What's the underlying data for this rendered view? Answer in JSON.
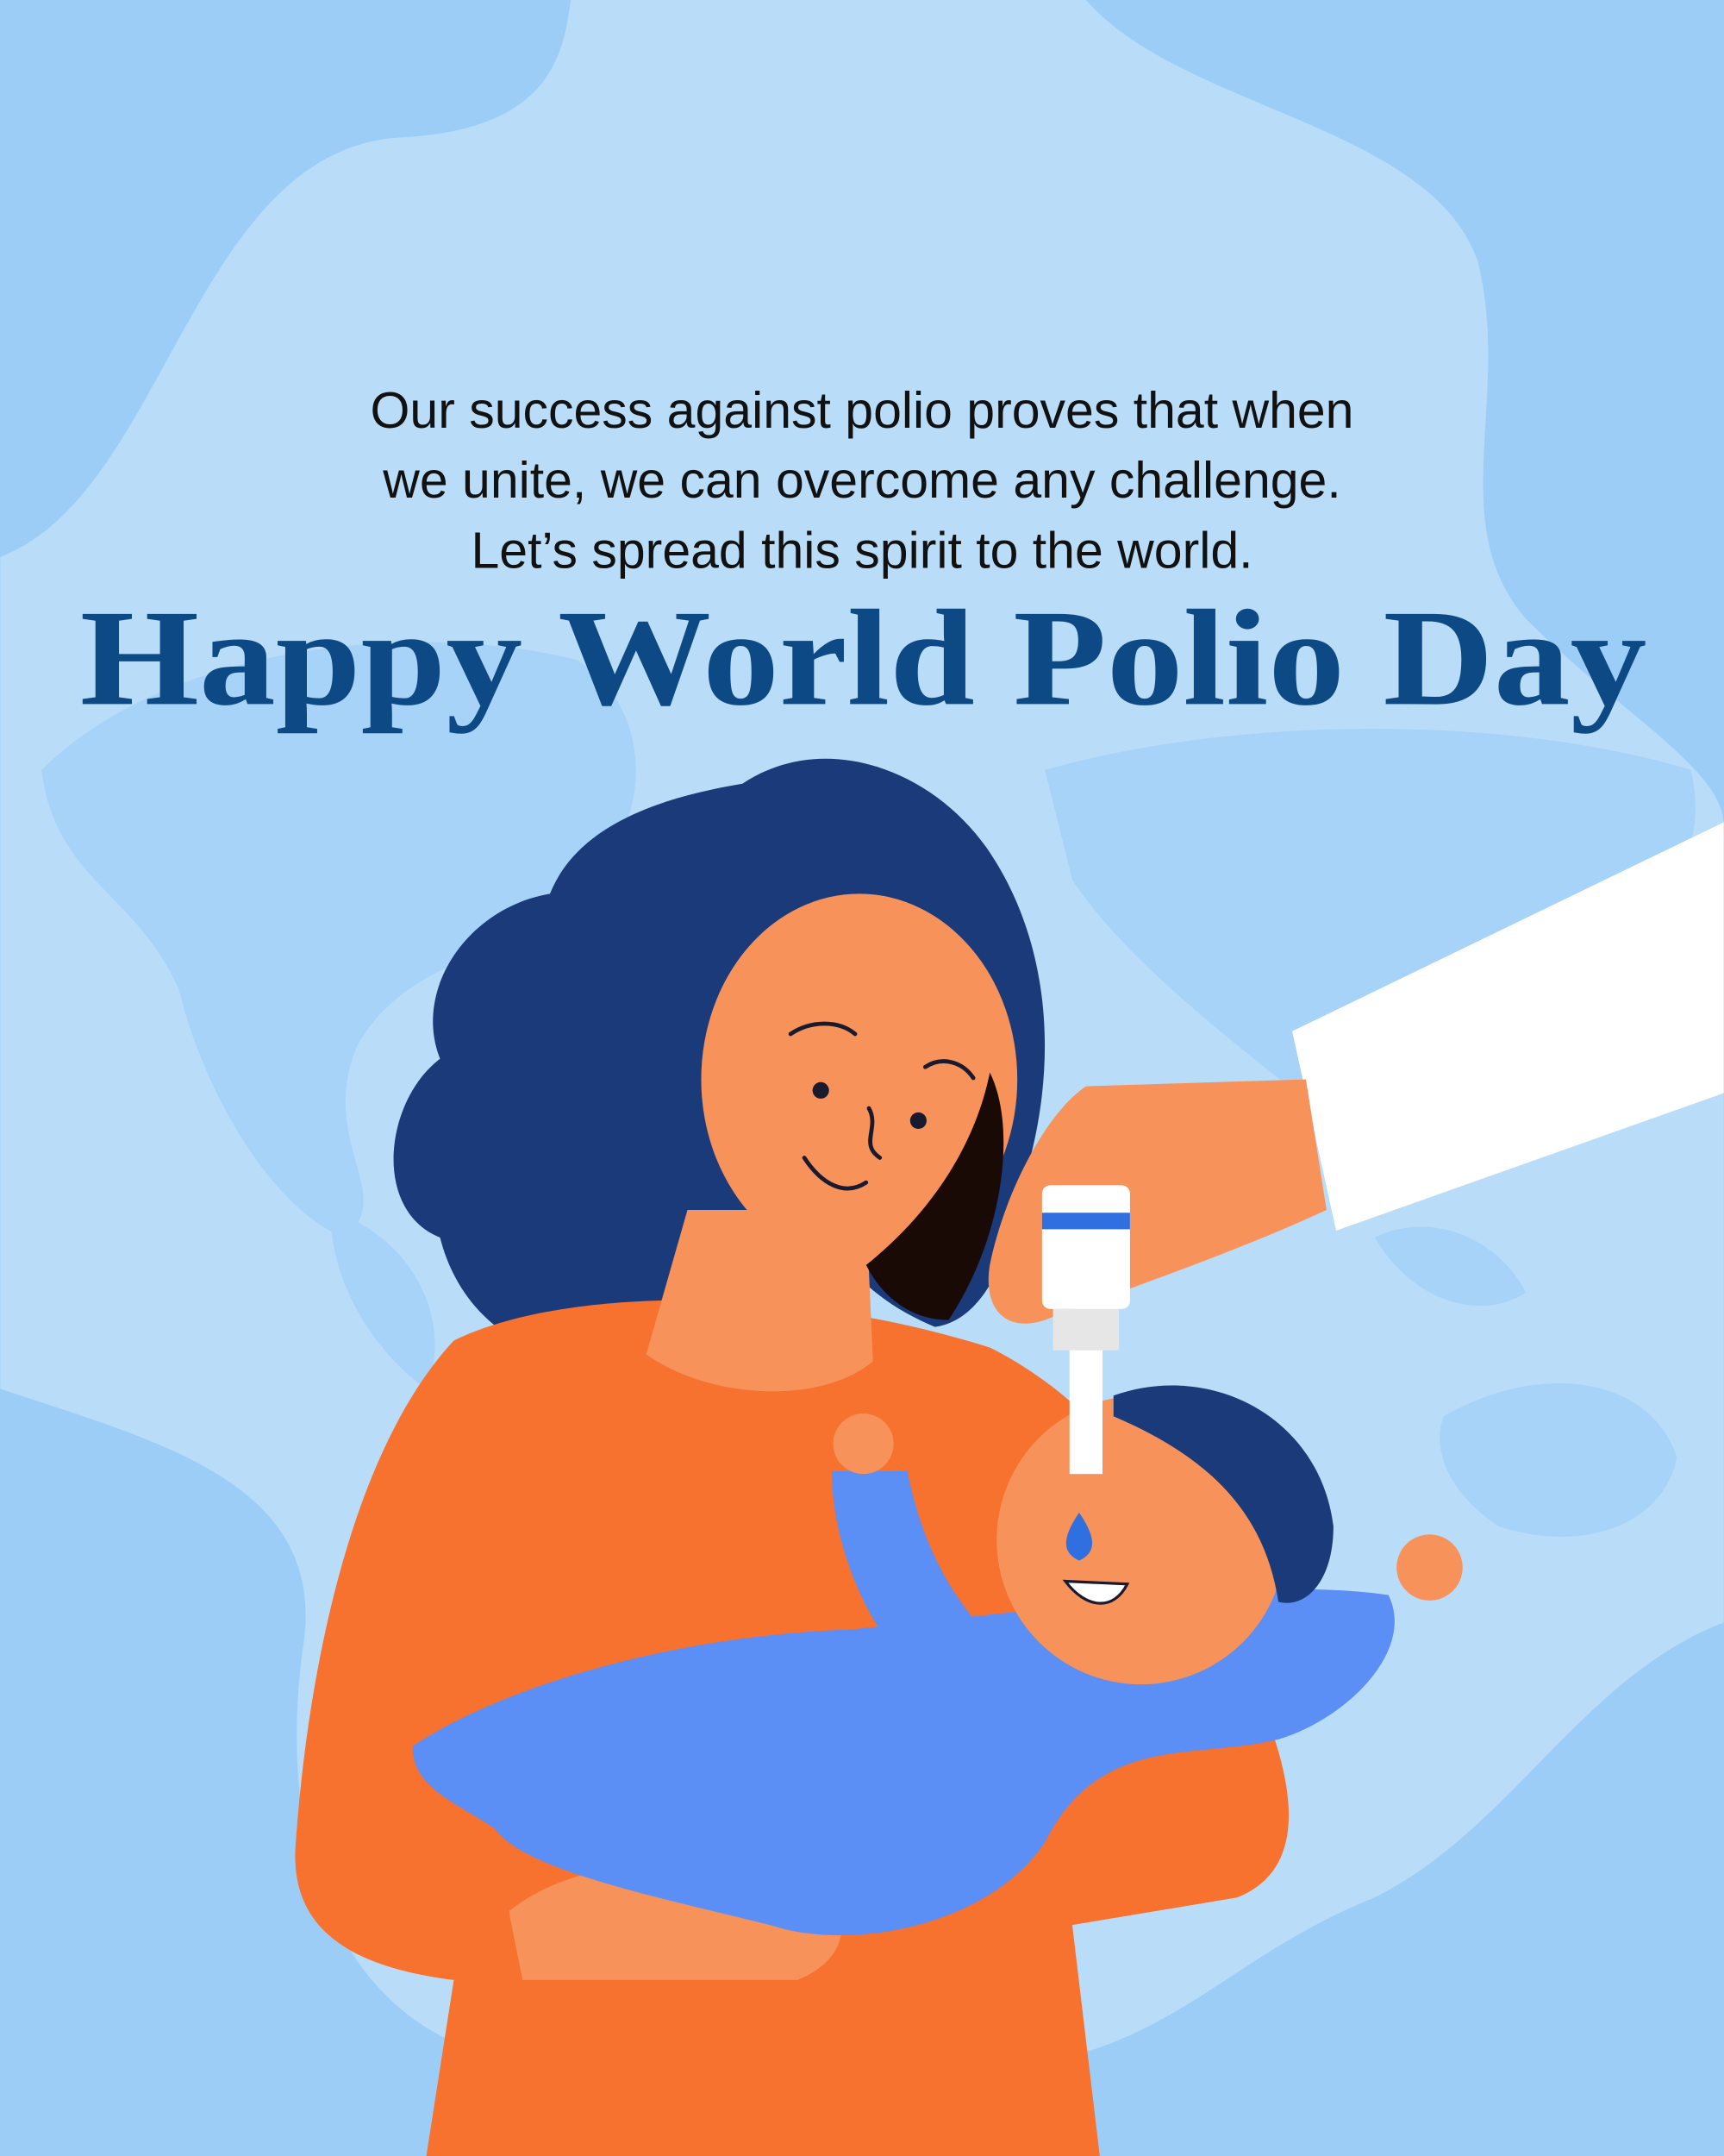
{
  "poster": {
    "message_lines": [
      "Our success against polio proves that when",
      "we unite, we can overcome any challenge.",
      "Let’s spread this spirit to the world."
    ],
    "title": "Happy World Polio Day"
  },
  "colors": {
    "background": "#9ccdf7",
    "background_light": "#b9ddf8",
    "title": "#0d4a85",
    "hair": "#1b3a7a",
    "skin": "#f7925a",
    "shirt": "#f7712f",
    "baby_suit": "#5b8ff5",
    "sleeve": "#ffffff"
  }
}
